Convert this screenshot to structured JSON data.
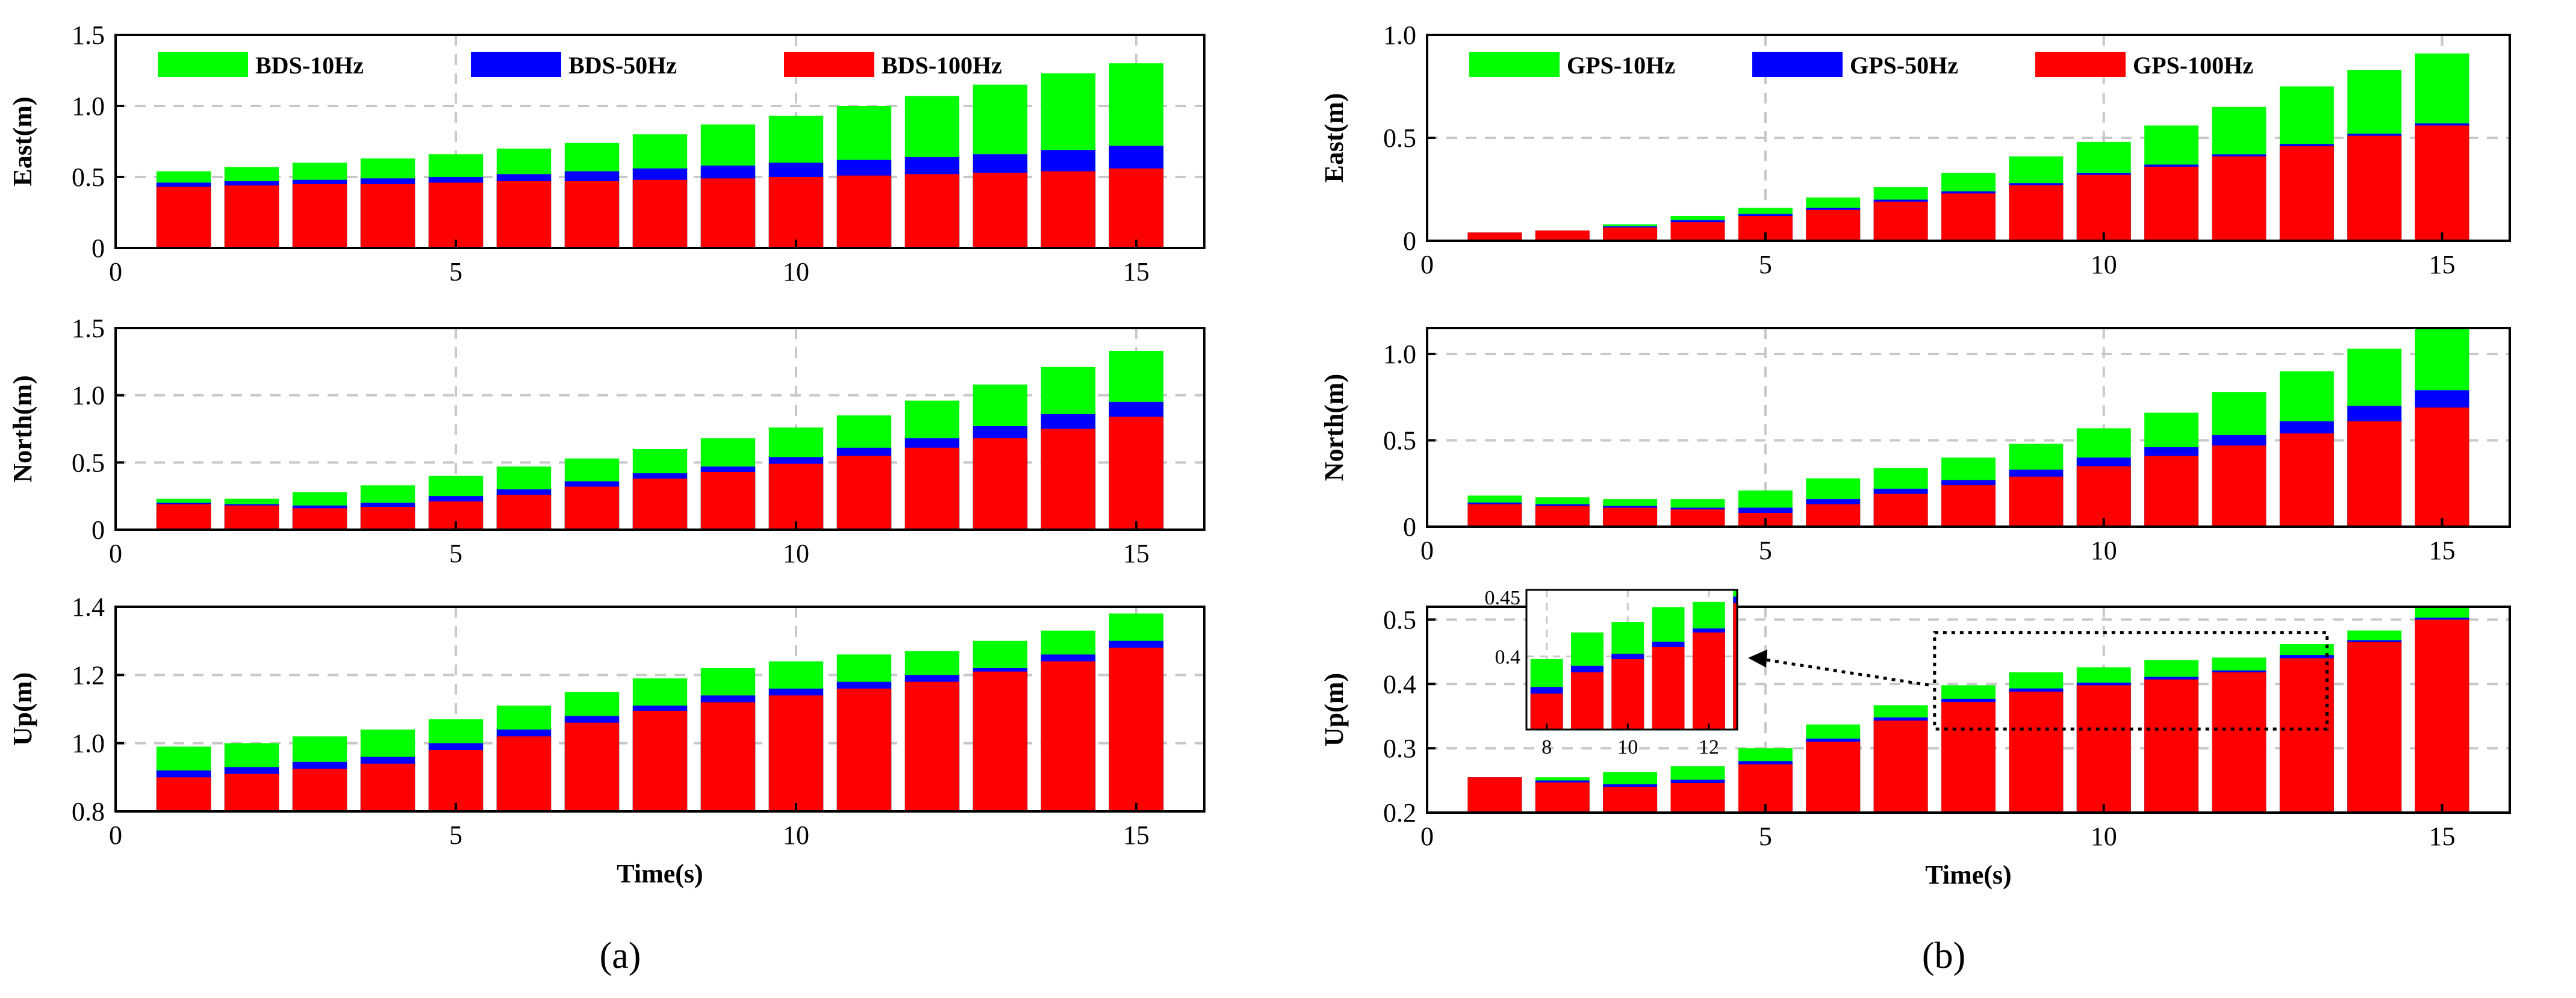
{
  "colors": {
    "bar_10hz": "#00ff00",
    "bar_50hz": "#0000ff",
    "bar_100hz": "#ff0000",
    "grid": "#c8c8c8",
    "axis": "#000000"
  },
  "chart_data": [
    {
      "type": "bar",
      "stacked": "overlay",
      "panel": "a",
      "subplot": "east",
      "ylabel": "East(m)",
      "xlabel": "",
      "xlim": [
        0,
        16
      ],
      "ylim": [
        0,
        1.5
      ],
      "xticks": [
        "0",
        "5",
        "10",
        "15"
      ],
      "yticks": [
        "0",
        "0.5",
        "1.0",
        "1.5"
      ],
      "x": [
        1,
        2,
        3,
        4,
        5,
        6,
        7,
        8,
        9,
        10,
        11,
        12,
        13,
        14,
        15
      ],
      "legend": [
        "BDS-10Hz",
        "BDS-50Hz",
        "BDS-100Hz"
      ],
      "series": [
        {
          "name": "BDS-10Hz",
          "values": [
            0.54,
            0.57,
            0.6,
            0.63,
            0.66,
            0.7,
            0.74,
            0.8,
            0.87,
            0.93,
            1.0,
            1.07,
            1.15,
            1.23,
            1.3
          ]
        },
        {
          "name": "BDS-50Hz",
          "values": [
            0.46,
            0.47,
            0.48,
            0.49,
            0.5,
            0.52,
            0.54,
            0.56,
            0.58,
            0.6,
            0.62,
            0.64,
            0.66,
            0.69,
            0.72
          ]
        },
        {
          "name": "BDS-100Hz",
          "values": [
            0.43,
            0.44,
            0.45,
            0.45,
            0.46,
            0.47,
            0.47,
            0.48,
            0.49,
            0.5,
            0.51,
            0.52,
            0.53,
            0.54,
            0.56
          ]
        }
      ]
    },
    {
      "type": "bar",
      "stacked": "overlay",
      "panel": "a",
      "subplot": "north",
      "ylabel": "North(m)",
      "xlabel": "",
      "xlim": [
        0,
        16
      ],
      "ylim": [
        0,
        1.5
      ],
      "xticks": [
        "0",
        "5",
        "10",
        "15"
      ],
      "yticks": [
        "0",
        "0.5",
        "1.0",
        "1.5"
      ],
      "x": [
        1,
        2,
        3,
        4,
        5,
        6,
        7,
        8,
        9,
        10,
        11,
        12,
        13,
        14,
        15
      ],
      "legend": [],
      "series": [
        {
          "name": "BDS-10Hz",
          "values": [
            0.23,
            0.23,
            0.28,
            0.33,
            0.4,
            0.47,
            0.53,
            0.6,
            0.68,
            0.76,
            0.85,
            0.96,
            1.08,
            1.21,
            1.33
          ]
        },
        {
          "name": "BDS-50Hz",
          "values": [
            0.2,
            0.19,
            0.18,
            0.2,
            0.25,
            0.3,
            0.36,
            0.42,
            0.47,
            0.54,
            0.61,
            0.68,
            0.77,
            0.86,
            0.95
          ]
        },
        {
          "name": "BDS-100Hz",
          "values": [
            0.19,
            0.18,
            0.16,
            0.17,
            0.21,
            0.26,
            0.32,
            0.38,
            0.43,
            0.49,
            0.55,
            0.61,
            0.68,
            0.75,
            0.84
          ]
        }
      ]
    },
    {
      "type": "bar",
      "stacked": "overlay",
      "panel": "a",
      "subplot": "up",
      "ylabel": "Up(m)",
      "xlabel": "Time(s)",
      "xlim": [
        0,
        16
      ],
      "ylim": [
        0.8,
        1.4
      ],
      "xticks": [
        "0",
        "5",
        "10",
        "15"
      ],
      "yticks": [
        "0.8",
        "1.0",
        "1.2",
        "1.4"
      ],
      "x": [
        1,
        2,
        3,
        4,
        5,
        6,
        7,
        8,
        9,
        10,
        11,
        12,
        13,
        14,
        15
      ],
      "legend": [],
      "series": [
        {
          "name": "BDS-10Hz",
          "values": [
            0.99,
            1.0,
            1.02,
            1.04,
            1.07,
            1.11,
            1.15,
            1.19,
            1.22,
            1.24,
            1.26,
            1.27,
            1.3,
            1.33,
            1.38
          ]
        },
        {
          "name": "BDS-50Hz",
          "values": [
            0.92,
            0.93,
            0.945,
            0.96,
            1.0,
            1.04,
            1.08,
            1.11,
            1.14,
            1.16,
            1.18,
            1.2,
            1.22,
            1.26,
            1.3
          ]
        },
        {
          "name": "BDS-100Hz",
          "values": [
            0.9,
            0.91,
            0.925,
            0.94,
            0.98,
            1.02,
            1.06,
            1.095,
            1.12,
            1.14,
            1.16,
            1.18,
            1.21,
            1.24,
            1.28
          ]
        }
      ]
    },
    {
      "type": "bar",
      "stacked": "overlay",
      "panel": "b",
      "subplot": "east",
      "ylabel": "East(m)",
      "xlabel": "",
      "xlim": [
        0,
        16
      ],
      "ylim": [
        0,
        1.0
      ],
      "xticks": [
        "0",
        "5",
        "10",
        "15"
      ],
      "yticks": [
        "0",
        "0.5",
        "1.0"
      ],
      "x": [
        1,
        2,
        3,
        4,
        5,
        6,
        7,
        8,
        9,
        10,
        11,
        12,
        13,
        14,
        15
      ],
      "legend": [
        "GPS-10Hz",
        "GPS-50Hz",
        "GPS-100Hz"
      ],
      "series": [
        {
          "name": "GPS-10Hz",
          "values": [
            0.04,
            0.05,
            0.08,
            0.12,
            0.16,
            0.21,
            0.26,
            0.33,
            0.41,
            0.48,
            0.56,
            0.65,
            0.75,
            0.83,
            0.91
          ]
        },
        {
          "name": "GPS-50Hz",
          "values": [
            0.04,
            0.05,
            0.07,
            0.1,
            0.13,
            0.16,
            0.2,
            0.24,
            0.28,
            0.33,
            0.37,
            0.42,
            0.47,
            0.52,
            0.57
          ]
        },
        {
          "name": "GPS-100Hz",
          "values": [
            0.04,
            0.05,
            0.065,
            0.09,
            0.12,
            0.15,
            0.19,
            0.23,
            0.27,
            0.32,
            0.36,
            0.41,
            0.46,
            0.51,
            0.56
          ]
        }
      ]
    },
    {
      "type": "bar",
      "stacked": "overlay",
      "panel": "b",
      "subplot": "north",
      "ylabel": "North(m)",
      "xlabel": "",
      "xlim": [
        0,
        16
      ],
      "ylim": [
        0,
        1.15
      ],
      "xticks": [
        "0",
        "5",
        "10",
        "15"
      ],
      "yticks": [
        "0",
        "0.5",
        "1.0"
      ],
      "x": [
        1,
        2,
        3,
        4,
        5,
        6,
        7,
        8,
        9,
        10,
        11,
        12,
        13,
        14,
        15
      ],
      "legend": [],
      "series": [
        {
          "name": "GPS-10Hz",
          "values": [
            0.18,
            0.17,
            0.16,
            0.16,
            0.21,
            0.28,
            0.34,
            0.4,
            0.48,
            0.57,
            0.66,
            0.78,
            0.9,
            1.03,
            1.15
          ]
        },
        {
          "name": "GPS-50Hz",
          "values": [
            0.14,
            0.13,
            0.12,
            0.11,
            0.11,
            0.16,
            0.22,
            0.27,
            0.33,
            0.4,
            0.46,
            0.53,
            0.61,
            0.7,
            0.79
          ]
        },
        {
          "name": "GPS-100Hz",
          "values": [
            0.13,
            0.12,
            0.11,
            0.1,
            0.08,
            0.13,
            0.19,
            0.24,
            0.29,
            0.35,
            0.41,
            0.47,
            0.54,
            0.61,
            0.69
          ]
        }
      ]
    },
    {
      "type": "bar",
      "stacked": "overlay",
      "panel": "b",
      "subplot": "up",
      "ylabel": "Up(m)",
      "xlabel": "Time(s)",
      "xlim": [
        0,
        16
      ],
      "ylim": [
        0.2,
        0.52
      ],
      "xticks": [
        "0",
        "5",
        "10",
        "15"
      ],
      "yticks": [
        "0.2",
        "0.3",
        "0.4",
        "0.5"
      ],
      "x": [
        1,
        2,
        3,
        4,
        5,
        6,
        7,
        8,
        9,
        10,
        11,
        12,
        13,
        14,
        15
      ],
      "legend": [],
      "series": [
        {
          "name": "GPS-10Hz",
          "values": [
            0.255,
            0.255,
            0.263,
            0.272,
            0.3,
            0.337,
            0.367,
            0.398,
            0.418,
            0.426,
            0.437,
            0.441,
            0.462,
            0.483,
            0.52
          ]
        },
        {
          "name": "GPS-50Hz",
          "values": [
            0.255,
            0.25,
            0.244,
            0.251,
            0.28,
            0.315,
            0.348,
            0.377,
            0.393,
            0.402,
            0.411,
            0.421,
            0.445,
            0.468,
            0.503
          ]
        },
        {
          "name": "GPS-100Hz",
          "values": [
            0.255,
            0.247,
            0.24,
            0.246,
            0.275,
            0.31,
            0.343,
            0.372,
            0.388,
            0.398,
            0.407,
            0.418,
            0.44,
            0.465,
            0.5
          ]
        }
      ],
      "inset": {
        "xlim": [
          7.5,
          12.7
        ],
        "ylim": [
          0.345,
          0.45
        ],
        "xticks": [
          "8",
          "10",
          "12"
        ],
        "yticks": [
          "0.4",
          "0.45"
        ],
        "x": [
          7,
          8,
          9,
          10,
          11,
          12,
          13
        ]
      }
    }
  ],
  "captions": {
    "a": "(a)",
    "b": "(b)"
  }
}
